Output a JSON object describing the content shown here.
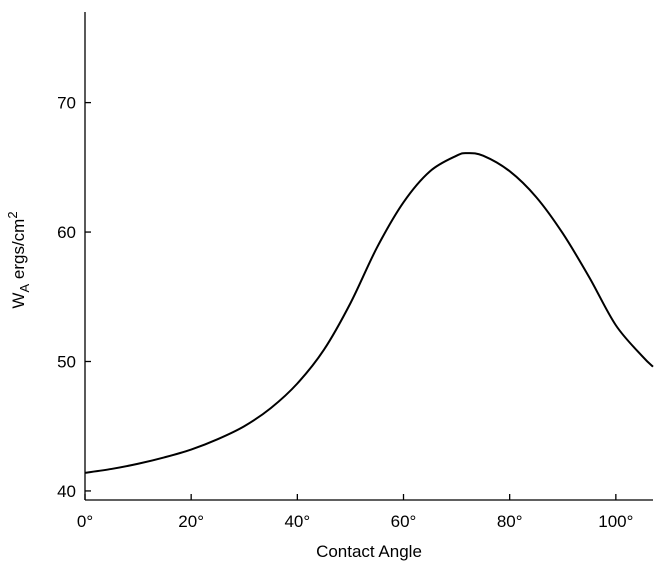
{
  "chart_data": {
    "type": "line",
    "title": "",
    "xlabel": "Contact Angle",
    "ylabel": {
      "main": "W",
      "sub": "A",
      "rest": " ergs/cm",
      "sup": "2"
    },
    "xlim": [
      0,
      107
    ],
    "ylim": [
      39.3,
      77
    ],
    "xticks": [
      0,
      20,
      40,
      60,
      80,
      100
    ],
    "xtick_labels": [
      "0°",
      "20°",
      "40°",
      "60°",
      "80°",
      "100°"
    ],
    "yticks": [
      40,
      50,
      60,
      70
    ],
    "ytick_labels": [
      "40",
      "50",
      "60",
      "70"
    ],
    "grid": false,
    "legend": "none",
    "series": [
      {
        "color": "#000000",
        "x": [
          0,
          5,
          10,
          15,
          20,
          25,
          30,
          35,
          40,
          45,
          50,
          55,
          60,
          65,
          70,
          72,
          75,
          80,
          85,
          90,
          95,
          100,
          105,
          107
        ],
        "y": [
          41.4,
          41.7,
          42.1,
          42.6,
          43.2,
          44.0,
          45.0,
          46.4,
          48.3,
          50.9,
          54.5,
          58.8,
          62.3,
          64.7,
          65.9,
          66.1,
          65.9,
          64.7,
          62.7,
          59.9,
          56.5,
          52.8,
          50.4,
          49.6
        ]
      }
    ]
  }
}
